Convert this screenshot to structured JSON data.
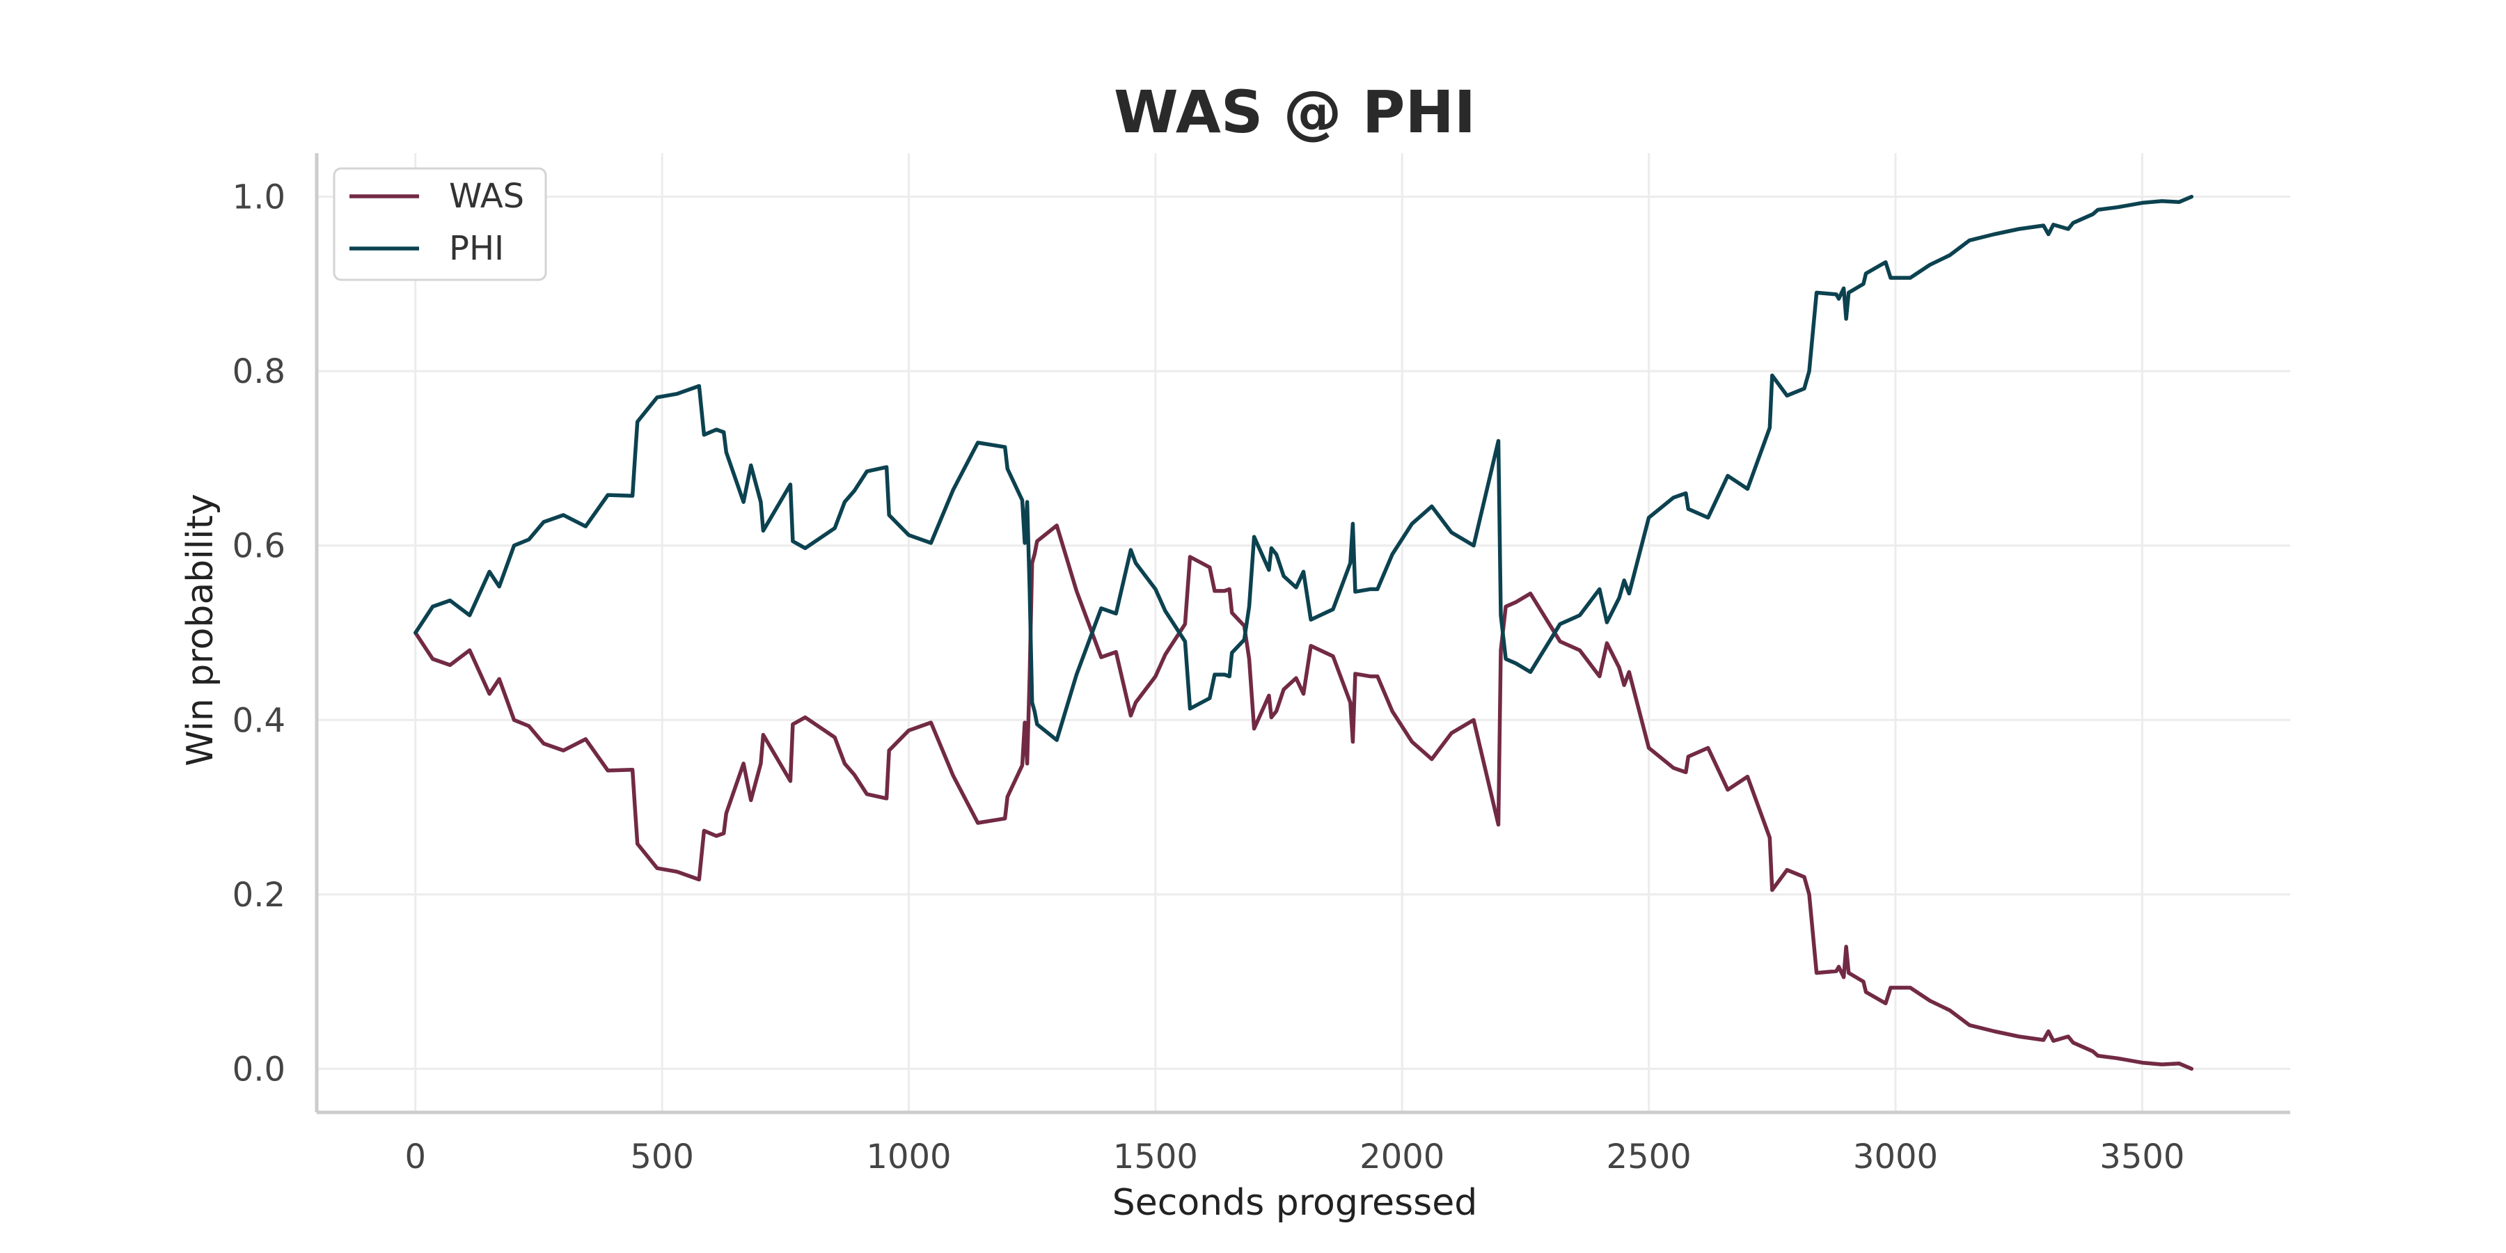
{
  "chart_data": {
    "type": "line",
    "title": "WAS @ PHI",
    "xlabel": "Seconds progressed",
    "ylabel": "Win probability",
    "xlim": [
      -200,
      3800
    ],
    "ylim": [
      -0.05,
      1.05
    ],
    "xticks": [
      0,
      500,
      1000,
      1500,
      2000,
      2500,
      3000,
      3500
    ],
    "xtick_labels": [
      "0",
      "500",
      "1000",
      "1500",
      "2000",
      "2500",
      "3000",
      "3500"
    ],
    "yticks": [
      0.0,
      0.2,
      0.4,
      0.6,
      0.8,
      1.0
    ],
    "ytick_labels": [
      "0.0",
      "0.2",
      "0.4",
      "0.6",
      "0.8",
      "1.0"
    ],
    "grid": true,
    "legend_position": "top-left",
    "series": [
      {
        "name": "WAS",
        "color": "#722a44",
        "points": [
          [
            0,
            0.5
          ],
          [
            35,
            0.47
          ],
          [
            70,
            0.463
          ],
          [
            110,
            0.48
          ],
          [
            150,
            0.43
          ],
          [
            170,
            0.447
          ],
          [
            200,
            0.4
          ],
          [
            230,
            0.393
          ],
          [
            260,
            0.373
          ],
          [
            300,
            0.365
          ],
          [
            345,
            0.378
          ],
          [
            390,
            0.342
          ],
          [
            440,
            0.343
          ],
          [
            445,
            0.3
          ],
          [
            450,
            0.258
          ],
          [
            490,
            0.23
          ],
          [
            530,
            0.226
          ],
          [
            575,
            0.217
          ],
          [
            585,
            0.273
          ],
          [
            610,
            0.267
          ],
          [
            625,
            0.27
          ],
          [
            630,
            0.293
          ],
          [
            665,
            0.35
          ],
          [
            680,
            0.308
          ],
          [
            700,
            0.35
          ],
          [
            705,
            0.383
          ],
          [
            760,
            0.33
          ],
          [
            765,
            0.395
          ],
          [
            790,
            0.403
          ],
          [
            850,
            0.38
          ],
          [
            870,
            0.35
          ],
          [
            890,
            0.337
          ],
          [
            915,
            0.315
          ],
          [
            955,
            0.31
          ],
          [
            960,
            0.365
          ],
          [
            1000,
            0.388
          ],
          [
            1045,
            0.397
          ],
          [
            1090,
            0.336
          ],
          [
            1140,
            0.282
          ],
          [
            1195,
            0.287
          ],
          [
            1200,
            0.312
          ],
          [
            1230,
            0.348
          ],
          [
            1235,
            0.397
          ],
          [
            1240,
            0.35
          ],
          [
            1245,
            0.45
          ],
          [
            1250,
            0.58
          ],
          [
            1255,
            0.59
          ],
          [
            1260,
            0.605
          ],
          [
            1300,
            0.623
          ],
          [
            1340,
            0.548
          ],
          [
            1390,
            0.472
          ],
          [
            1420,
            0.478
          ],
          [
            1450,
            0.405
          ],
          [
            1460,
            0.42
          ],
          [
            1500,
            0.45
          ],
          [
            1520,
            0.475
          ],
          [
            1560,
            0.51
          ],
          [
            1570,
            0.587
          ],
          [
            1610,
            0.575
          ],
          [
            1620,
            0.548
          ],
          [
            1640,
            0.548
          ],
          [
            1650,
            0.55
          ],
          [
            1655,
            0.523
          ],
          [
            1680,
            0.508
          ],
          [
            1690,
            0.47
          ],
          [
            1700,
            0.39
          ],
          [
            1730,
            0.428
          ],
          [
            1735,
            0.403
          ],
          [
            1745,
            0.41
          ],
          [
            1760,
            0.435
          ],
          [
            1785,
            0.448
          ],
          [
            1800,
            0.43
          ],
          [
            1815,
            0.485
          ],
          [
            1860,
            0.473
          ],
          [
            1895,
            0.42
          ],
          [
            1900,
            0.375
          ],
          [
            1905,
            0.453
          ],
          [
            1935,
            0.45
          ],
          [
            1950,
            0.45
          ],
          [
            1980,
            0.41
          ],
          [
            2020,
            0.375
          ],
          [
            2060,
            0.355
          ],
          [
            2100,
            0.385
          ],
          [
            2145,
            0.4
          ],
          [
            2195,
            0.28
          ],
          [
            2200,
            0.48
          ],
          [
            2210,
            0.53
          ],
          [
            2230,
            0.535
          ],
          [
            2260,
            0.545
          ],
          [
            2320,
            0.49
          ],
          [
            2360,
            0.48
          ],
          [
            2400,
            0.45
          ],
          [
            2415,
            0.488
          ],
          [
            2440,
            0.46
          ],
          [
            2450,
            0.44
          ],
          [
            2460,
            0.455
          ],
          [
            2500,
            0.368
          ],
          [
            2550,
            0.345
          ],
          [
            2575,
            0.34
          ],
          [
            2580,
            0.358
          ],
          [
            2620,
            0.368
          ],
          [
            2660,
            0.32
          ],
          [
            2700,
            0.335
          ],
          [
            2745,
            0.265
          ],
          [
            2750,
            0.205
          ],
          [
            2780,
            0.228
          ],
          [
            2815,
            0.22
          ],
          [
            2825,
            0.2
          ],
          [
            2840,
            0.11
          ],
          [
            2880,
            0.112
          ],
          [
            2885,
            0.117
          ],
          [
            2895,
            0.105
          ],
          [
            2900,
            0.14
          ],
          [
            2905,
            0.11
          ],
          [
            2935,
            0.1
          ],
          [
            2940,
            0.088
          ],
          [
            2980,
            0.075
          ],
          [
            2990,
            0.093
          ],
          [
            3030,
            0.093
          ],
          [
            3070,
            0.078
          ],
          [
            3110,
            0.067
          ],
          [
            3150,
            0.05
          ],
          [
            3200,
            0.043
          ],
          [
            3250,
            0.037
          ],
          [
            3300,
            0.033
          ],
          [
            3310,
            0.043
          ],
          [
            3320,
            0.032
          ],
          [
            3350,
            0.037
          ],
          [
            3360,
            0.03
          ],
          [
            3400,
            0.02
          ],
          [
            3410,
            0.015
          ],
          [
            3450,
            0.012
          ],
          [
            3500,
            0.007
          ],
          [
            3540,
            0.005
          ],
          [
            3575,
            0.006
          ],
          [
            3600,
            0.0
          ]
        ]
      },
      {
        "name": "PHI",
        "color": "#0c4250",
        "points": [
          [
            0,
            0.5
          ],
          [
            35,
            0.53
          ],
          [
            70,
            0.537
          ],
          [
            110,
            0.52
          ],
          [
            150,
            0.57
          ],
          [
            170,
            0.553
          ],
          [
            200,
            0.6
          ],
          [
            230,
            0.607
          ],
          [
            260,
            0.627
          ],
          [
            300,
            0.635
          ],
          [
            345,
            0.622
          ],
          [
            390,
            0.658
          ],
          [
            440,
            0.657
          ],
          [
            445,
            0.7
          ],
          [
            450,
            0.742
          ],
          [
            490,
            0.77
          ],
          [
            530,
            0.774
          ],
          [
            575,
            0.783
          ],
          [
            585,
            0.727
          ],
          [
            610,
            0.733
          ],
          [
            625,
            0.73
          ],
          [
            630,
            0.707
          ],
          [
            665,
            0.65
          ],
          [
            680,
            0.692
          ],
          [
            700,
            0.65
          ],
          [
            705,
            0.617
          ],
          [
            760,
            0.67
          ],
          [
            765,
            0.605
          ],
          [
            790,
            0.597
          ],
          [
            850,
            0.62
          ],
          [
            870,
            0.65
          ],
          [
            890,
            0.663
          ],
          [
            915,
            0.685
          ],
          [
            955,
            0.69
          ],
          [
            960,
            0.635
          ],
          [
            1000,
            0.612
          ],
          [
            1045,
            0.603
          ],
          [
            1090,
            0.664
          ],
          [
            1140,
            0.718
          ],
          [
            1195,
            0.713
          ],
          [
            1200,
            0.688
          ],
          [
            1230,
            0.652
          ],
          [
            1235,
            0.603
          ],
          [
            1240,
            0.65
          ],
          [
            1245,
            0.55
          ],
          [
            1250,
            0.42
          ],
          [
            1255,
            0.41
          ],
          [
            1260,
            0.395
          ],
          [
            1300,
            0.377
          ],
          [
            1340,
            0.452
          ],
          [
            1390,
            0.528
          ],
          [
            1420,
            0.522
          ],
          [
            1450,
            0.595
          ],
          [
            1460,
            0.58
          ],
          [
            1500,
            0.55
          ],
          [
            1520,
            0.525
          ],
          [
            1560,
            0.49
          ],
          [
            1570,
            0.413
          ],
          [
            1610,
            0.425
          ],
          [
            1620,
            0.452
          ],
          [
            1640,
            0.452
          ],
          [
            1650,
            0.45
          ],
          [
            1655,
            0.477
          ],
          [
            1680,
            0.492
          ],
          [
            1690,
            0.53
          ],
          [
            1700,
            0.61
          ],
          [
            1730,
            0.572
          ],
          [
            1735,
            0.597
          ],
          [
            1745,
            0.59
          ],
          [
            1760,
            0.565
          ],
          [
            1785,
            0.552
          ],
          [
            1800,
            0.57
          ],
          [
            1815,
            0.515
          ],
          [
            1860,
            0.527
          ],
          [
            1895,
            0.58
          ],
          [
            1900,
            0.625
          ],
          [
            1905,
            0.547
          ],
          [
            1935,
            0.55
          ],
          [
            1950,
            0.55
          ],
          [
            1980,
            0.59
          ],
          [
            2020,
            0.625
          ],
          [
            2060,
            0.645
          ],
          [
            2100,
            0.615
          ],
          [
            2145,
            0.6
          ],
          [
            2195,
            0.72
          ],
          [
            2200,
            0.52
          ],
          [
            2210,
            0.47
          ],
          [
            2230,
            0.465
          ],
          [
            2260,
            0.455
          ],
          [
            2320,
            0.51
          ],
          [
            2360,
            0.52
          ],
          [
            2400,
            0.55
          ],
          [
            2415,
            0.512
          ],
          [
            2440,
            0.54
          ],
          [
            2450,
            0.56
          ],
          [
            2460,
            0.545
          ],
          [
            2500,
            0.632
          ],
          [
            2550,
            0.655
          ],
          [
            2575,
            0.66
          ],
          [
            2580,
            0.642
          ],
          [
            2620,
            0.632
          ],
          [
            2660,
            0.68
          ],
          [
            2700,
            0.665
          ],
          [
            2745,
            0.735
          ],
          [
            2750,
            0.795
          ],
          [
            2780,
            0.772
          ],
          [
            2815,
            0.78
          ],
          [
            2825,
            0.8
          ],
          [
            2840,
            0.89
          ],
          [
            2880,
            0.888
          ],
          [
            2885,
            0.883
          ],
          [
            2895,
            0.895
          ],
          [
            2900,
            0.86
          ],
          [
            2905,
            0.89
          ],
          [
            2935,
            0.9
          ],
          [
            2940,
            0.912
          ],
          [
            2980,
            0.925
          ],
          [
            2990,
            0.907
          ],
          [
            3030,
            0.907
          ],
          [
            3070,
            0.922
          ],
          [
            3110,
            0.933
          ],
          [
            3150,
            0.95
          ],
          [
            3200,
            0.957
          ],
          [
            3250,
            0.963
          ],
          [
            3300,
            0.967
          ],
          [
            3310,
            0.957
          ],
          [
            3320,
            0.968
          ],
          [
            3350,
            0.963
          ],
          [
            3360,
            0.97
          ],
          [
            3400,
            0.98
          ],
          [
            3410,
            0.985
          ],
          [
            3450,
            0.988
          ],
          [
            3500,
            0.993
          ],
          [
            3540,
            0.995
          ],
          [
            3575,
            0.994
          ],
          [
            3600,
            1.0
          ]
        ]
      }
    ]
  }
}
